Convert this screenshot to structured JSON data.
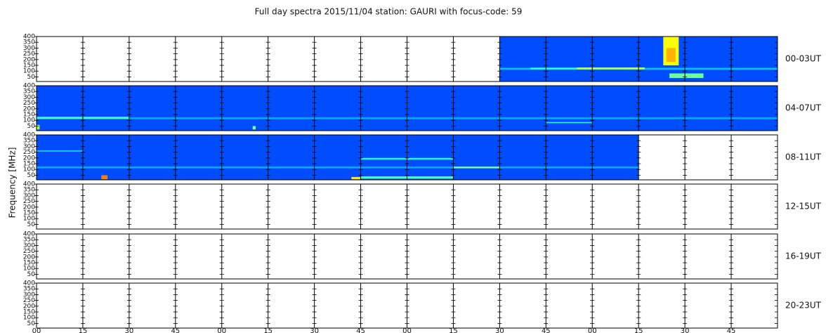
{
  "chart_data": {
    "type": "spectrogram",
    "title": "Full day spectra 2015/11/04 station: GAURI with focus-code: 59",
    "ylabel": "Frequency [MHz]",
    "xlim": [
      0,
      240
    ],
    "xticks": [
      {
        "value": 0,
        "label": "00"
      },
      {
        "value": 15,
        "label": "15"
      },
      {
        "value": 30,
        "label": "30"
      },
      {
        "value": 45,
        "label": "45"
      },
      {
        "value": 60,
        "label": "00"
      },
      {
        "value": 75,
        "label": "15"
      },
      {
        "value": 90,
        "label": "30"
      },
      {
        "value": 105,
        "label": "45"
      },
      {
        "value": 120,
        "label": "00"
      },
      {
        "value": 135,
        "label": "15"
      },
      {
        "value": 150,
        "label": "30"
      },
      {
        "value": 165,
        "label": "45"
      },
      {
        "value": 180,
        "label": "00"
      },
      {
        "value": 195,
        "label": "15"
      },
      {
        "value": 210,
        "label": "30"
      },
      {
        "value": 225,
        "label": "45"
      }
    ],
    "ylim": [
      10,
      400
    ],
    "yticks": [
      50,
      100,
      150,
      200,
      250,
      300,
      350,
      400
    ],
    "colormap": "jet",
    "rows": [
      {
        "label": "00-03UT",
        "coverage": {
          "t": [
            150,
            240
          ],
          "level": 0.2
        },
        "emissions": [
          {
            "t": [
              150,
              240
            ],
            "freq": [
              112,
              128
            ],
            "level": 0.32
          },
          {
            "t": [
              160,
              175
            ],
            "freq": [
              115,
              130
            ],
            "level": 0.42
          },
          {
            "t": [
              175,
              197
            ],
            "freq": [
              115,
              132
            ],
            "level": 0.55
          },
          {
            "t": [
              203,
              208
            ],
            "freq": [
              150,
              400
            ],
            "level": 0.62
          },
          {
            "t": [
              204,
              207
            ],
            "freq": [
              180,
              300
            ],
            "level": 0.7
          },
          {
            "t": [
              205,
              216
            ],
            "freq": [
              40,
              80
            ],
            "level": 0.48
          }
        ]
      },
      {
        "label": "04-07UT",
        "coverage": {
          "t": [
            0,
            240
          ],
          "level": 0.2
        },
        "emissions": [
          {
            "t": [
              0,
              240
            ],
            "freq": [
              110,
              125
            ],
            "level": 0.3
          },
          {
            "t": [
              0,
              30
            ],
            "freq": [
              112,
              130
            ],
            "level": 0.45
          },
          {
            "t": [
              165,
              180
            ],
            "freq": [
              75,
              85
            ],
            "level": 0.4
          },
          {
            "t": [
              0,
              1
            ],
            "freq": [
              20,
              60
            ],
            "level": 0.55
          },
          {
            "t": [
              70,
              71
            ],
            "freq": [
              20,
              50
            ],
            "level": 0.5
          }
        ]
      },
      {
        "label": "08-11UT",
        "coverage": {
          "t": [
            0,
            195
          ],
          "level": 0.2
        },
        "emissions": [
          {
            "t": [
              0,
              195
            ],
            "freq": [
              110,
              125
            ],
            "level": 0.3
          },
          {
            "t": [
              0,
              15
            ],
            "freq": [
              255,
              265
            ],
            "level": 0.35
          },
          {
            "t": [
              105,
              135
            ],
            "freq": [
              185,
              200
            ],
            "level": 0.4
          },
          {
            "t": [
              105,
              135
            ],
            "freq": [
              20,
              40
            ],
            "level": 0.45
          },
          {
            "t": [
              102,
              105
            ],
            "freq": [
              15,
              35
            ],
            "level": 0.65
          },
          {
            "t": [
              135,
              150
            ],
            "freq": [
              110,
              125
            ],
            "level": 0.5
          },
          {
            "t": [
              21,
              23
            ],
            "freq": [
              15,
              50
            ],
            "level": 0.75
          }
        ]
      },
      {
        "label": "12-15UT",
        "coverage": null,
        "emissions": []
      },
      {
        "label": "16-19UT",
        "coverage": null,
        "emissions": []
      },
      {
        "label": "20-23UT",
        "coverage": null,
        "emissions": []
      }
    ]
  }
}
